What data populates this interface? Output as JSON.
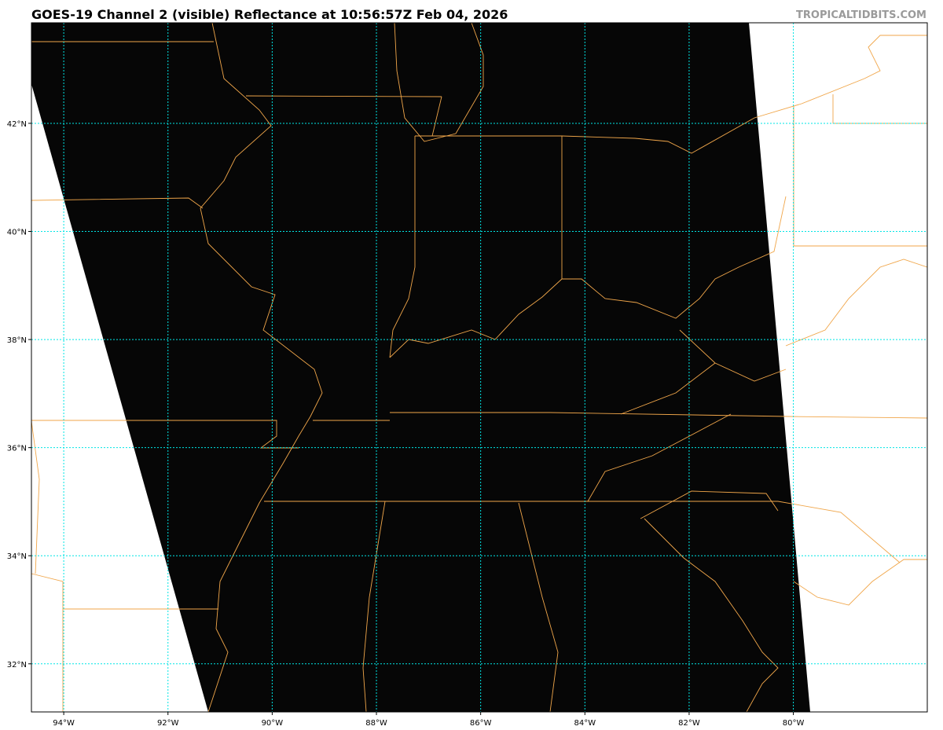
{
  "header": {
    "title": "GOES-19 Channel 2 (visible) Reflectance at 10:56:57Z Feb 04, 2026",
    "watermark": "TROPICALTIDBITS.COM"
  },
  "map": {
    "extent": {
      "lon_west": -94.62,
      "lon_east": -77.43,
      "lat_south": 31.11,
      "lat_north": 43.86
    },
    "longitude_ticks": [
      {
        "value": -94,
        "label": "94°W"
      },
      {
        "value": -92,
        "label": "92°W"
      },
      {
        "value": -90,
        "label": "90°W"
      },
      {
        "value": -88,
        "label": "88°W"
      },
      {
        "value": -86,
        "label": "86°W"
      },
      {
        "value": -84,
        "label": "84°W"
      },
      {
        "value": -82,
        "label": "82°W"
      },
      {
        "value": -80,
        "label": "80°W"
      }
    ],
    "latitude_ticks": [
      {
        "value": 42,
        "label": "42°N"
      },
      {
        "value": 40,
        "label": "40°N"
      },
      {
        "value": 38,
        "label": "38°N"
      },
      {
        "value": 36,
        "label": "36°N"
      },
      {
        "value": 34,
        "label": "34°N"
      },
      {
        "value": 32,
        "label": "32°N"
      }
    ],
    "colors": {
      "imagery": "#060606",
      "no_data": "#ffffff",
      "borders": "#f0a64a",
      "gridlines": "#00e5e5"
    }
  }
}
